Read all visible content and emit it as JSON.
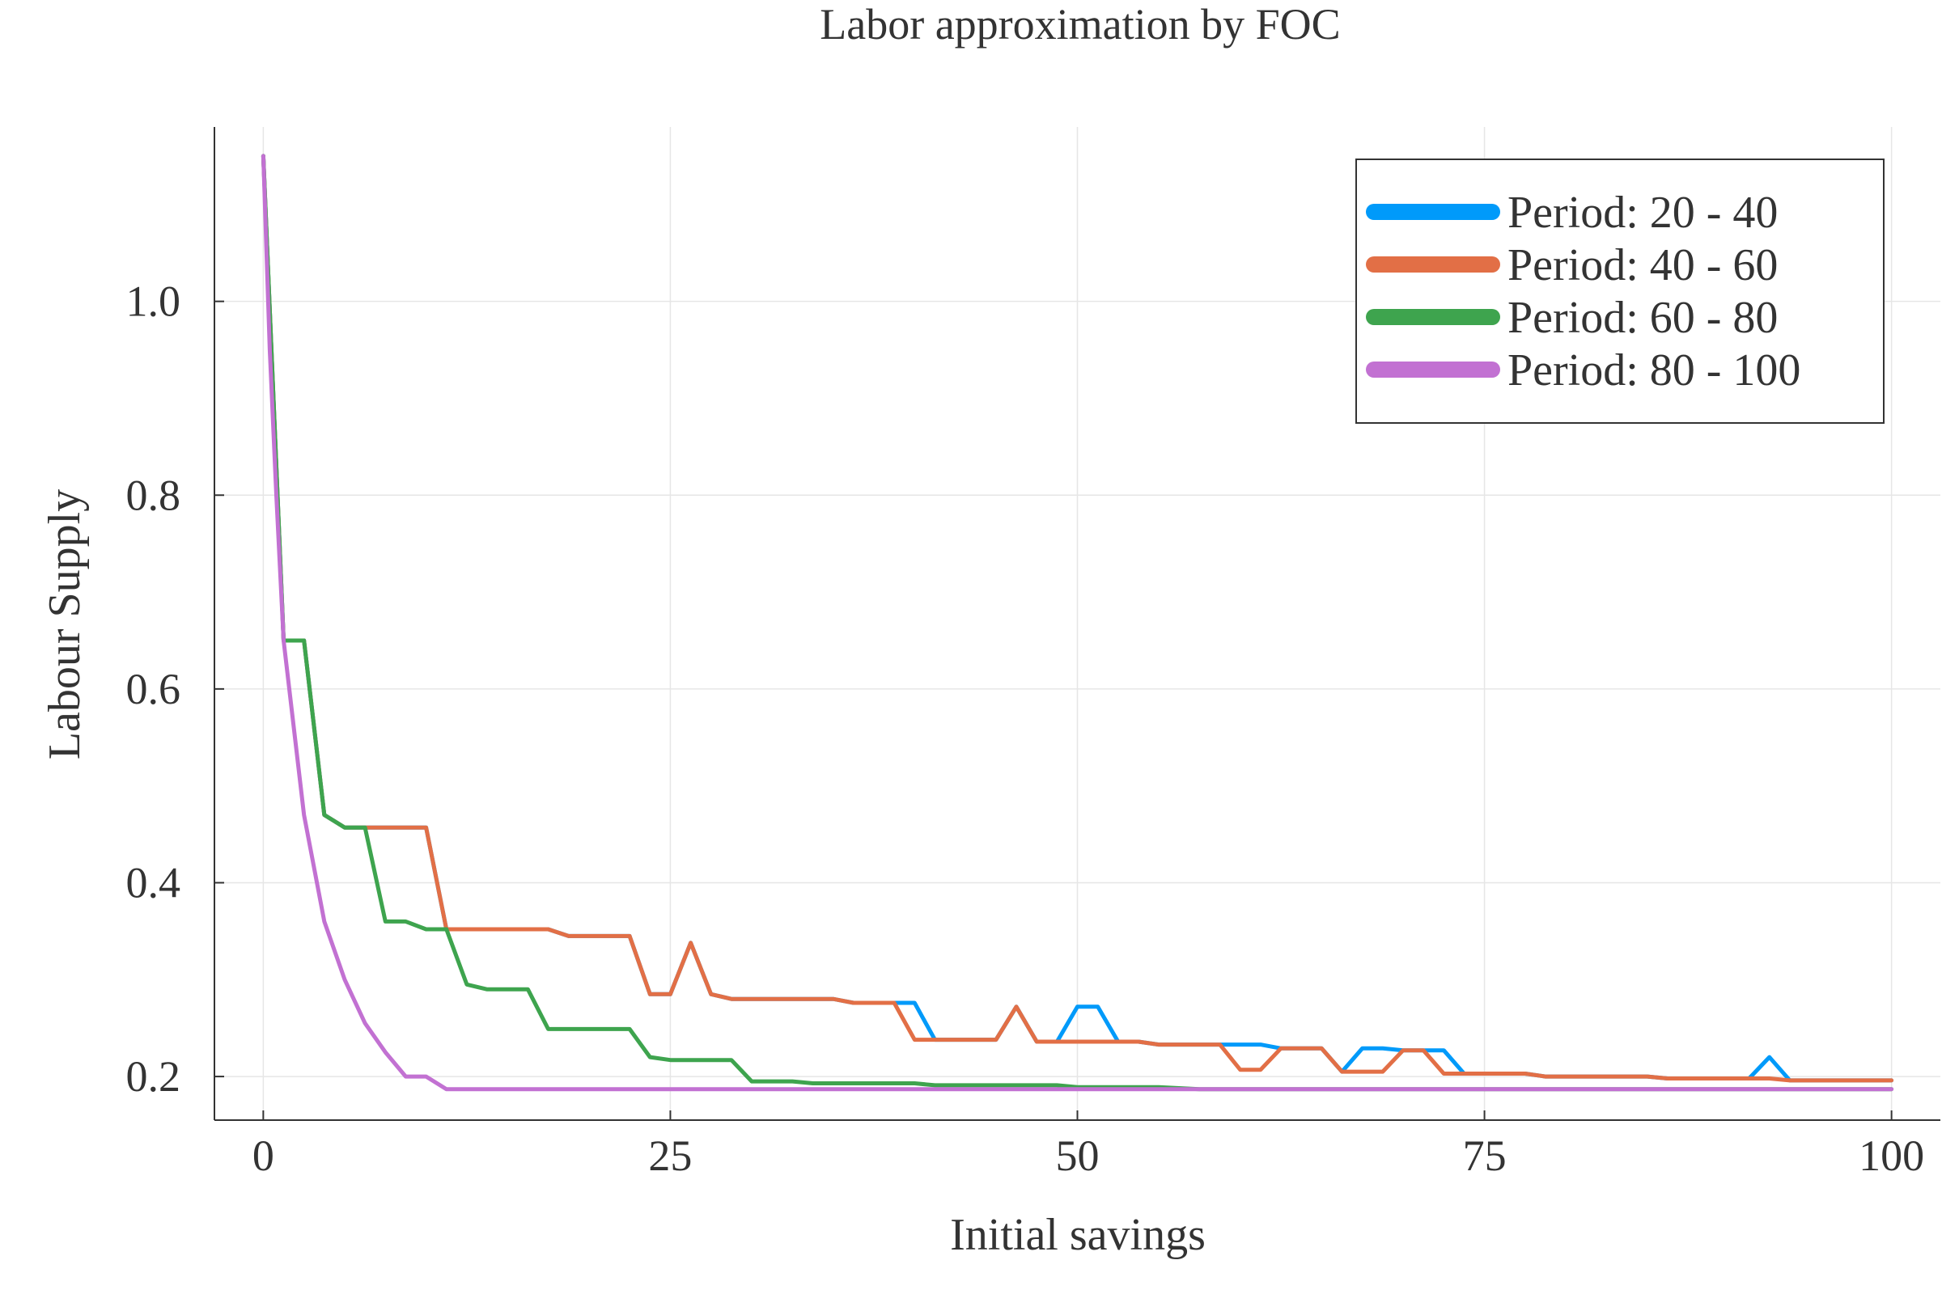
{
  "chart_data": {
    "type": "line",
    "title": "Labor approximation by FOC",
    "xlabel": "Initial savings",
    "ylabel": "Labour Supply",
    "xlim": [
      -3,
      103
    ],
    "ylim": [
      0.155,
      1.18
    ],
    "xticks": [
      0,
      25,
      50,
      75,
      100
    ],
    "xtick_labels": [
      "0",
      "25",
      "50",
      "75",
      "100"
    ],
    "yticks": [
      0.2,
      0.4,
      0.6,
      0.8,
      1.0
    ],
    "ytick_labels": [
      "0.2",
      "0.4",
      "0.6",
      "0.8",
      "1.0"
    ],
    "grid": true,
    "legend_position": "top-right",
    "series": [
      {
        "name": "Period: 20 - 40",
        "color": "#009AFA",
        "x": [
          0,
          1.25,
          2.5,
          3.75,
          5,
          6.25,
          7.5,
          8.75,
          10,
          11.25,
          12.5,
          15,
          17.5,
          18.75,
          20,
          22.5,
          23.75,
          25,
          26.25,
          27.5,
          28.75,
          30,
          35,
          36.25,
          38.75,
          40,
          41.25,
          42.5,
          45,
          46.25,
          47.5,
          48.75,
          50,
          51.25,
          52.5,
          53.75,
          55,
          57.5,
          61.25,
          62.5,
          65,
          66.25,
          67.5,
          68.75,
          70,
          71.25,
          72.5,
          73.75,
          75,
          77.5,
          78.75,
          85,
          86.25,
          91.25,
          92.5,
          93.75,
          100
        ],
        "y": [
          1.15,
          0.65,
          0.65,
          0.47,
          0.457,
          0.457,
          0.457,
          0.457,
          0.457,
          0.352,
          0.352,
          0.352,
          0.352,
          0.345,
          0.345,
          0.345,
          0.285,
          0.285,
          0.338,
          0.285,
          0.28,
          0.28,
          0.28,
          0.276,
          0.276,
          0.276,
          0.238,
          0.238,
          0.238,
          0.272,
          0.236,
          0.236,
          0.272,
          0.272,
          0.236,
          0.236,
          0.233,
          0.233,
          0.233,
          0.229,
          0.229,
          0.205,
          0.229,
          0.229,
          0.227,
          0.227,
          0.227,
          0.203,
          0.203,
          0.203,
          0.2,
          0.2,
          0.198,
          0.198,
          0.22,
          0.196,
          0.196
        ]
      },
      {
        "name": "Period: 40 - 60",
        "color": "#E26F46",
        "x": [
          0,
          1.25,
          2.5,
          3.75,
          5,
          6.25,
          7.5,
          8.75,
          10,
          11.25,
          12.5,
          15,
          17.5,
          18.75,
          20,
          22.5,
          23.75,
          25,
          26.25,
          27.5,
          28.75,
          30,
          35,
          36.25,
          38.75,
          40,
          41.25,
          42.5,
          45,
          46.25,
          47.5,
          48.75,
          50,
          51.25,
          52.5,
          53.75,
          55,
          57.5,
          58.75,
          60,
          61.25,
          62.5,
          65,
          66.25,
          67.5,
          68.75,
          70,
          71.25,
          72.5,
          73.75,
          75,
          77.5,
          78.75,
          85,
          86.25,
          91.25,
          92.5,
          93.75,
          100
        ],
        "y": [
          1.15,
          0.65,
          0.65,
          0.47,
          0.457,
          0.457,
          0.457,
          0.457,
          0.457,
          0.352,
          0.352,
          0.352,
          0.352,
          0.345,
          0.345,
          0.345,
          0.285,
          0.285,
          0.338,
          0.285,
          0.28,
          0.28,
          0.28,
          0.276,
          0.276,
          0.238,
          0.238,
          0.238,
          0.238,
          0.272,
          0.236,
          0.236,
          0.236,
          0.236,
          0.236,
          0.236,
          0.233,
          0.233,
          0.233,
          0.207,
          0.207,
          0.229,
          0.229,
          0.205,
          0.205,
          0.205,
          0.227,
          0.227,
          0.203,
          0.203,
          0.203,
          0.203,
          0.2,
          0.2,
          0.198,
          0.198,
          0.198,
          0.196,
          0.196
        ]
      },
      {
        "name": "Period: 60 - 80",
        "color": "#3EA44E",
        "x": [
          0,
          1.25,
          2.5,
          3.75,
          5,
          6.25,
          7.5,
          8.75,
          10,
          11.25,
          12.5,
          13.75,
          15,
          16.25,
          17.5,
          20,
          22.5,
          23.75,
          25,
          26.25,
          28.75,
          30,
          32.5,
          33.75,
          35,
          37.5,
          40,
          41.25,
          43.75,
          45,
          47.5,
          48.75,
          50,
          55,
          57.5,
          100
        ],
        "y": [
          1.15,
          0.65,
          0.65,
          0.47,
          0.457,
          0.457,
          0.36,
          0.36,
          0.352,
          0.352,
          0.295,
          0.29,
          0.29,
          0.29,
          0.249,
          0.249,
          0.249,
          0.22,
          0.217,
          0.217,
          0.217,
          0.195,
          0.195,
          0.193,
          0.193,
          0.193,
          0.193,
          0.191,
          0.191,
          0.191,
          0.191,
          0.191,
          0.189,
          0.189,
          0.187,
          0.187
        ]
      },
      {
        "name": "Period: 80 - 100",
        "color": "#C271D2",
        "x": [
          0,
          0.4,
          0.8,
          1.25,
          2.5,
          3.75,
          5,
          6.25,
          7.5,
          8.75,
          10,
          11.25,
          12.5,
          100
        ],
        "y": [
          1.15,
          0.95,
          0.8,
          0.65,
          0.47,
          0.36,
          0.3,
          0.255,
          0.225,
          0.2,
          0.2,
          0.187,
          0.187,
          0.187
        ]
      }
    ]
  }
}
